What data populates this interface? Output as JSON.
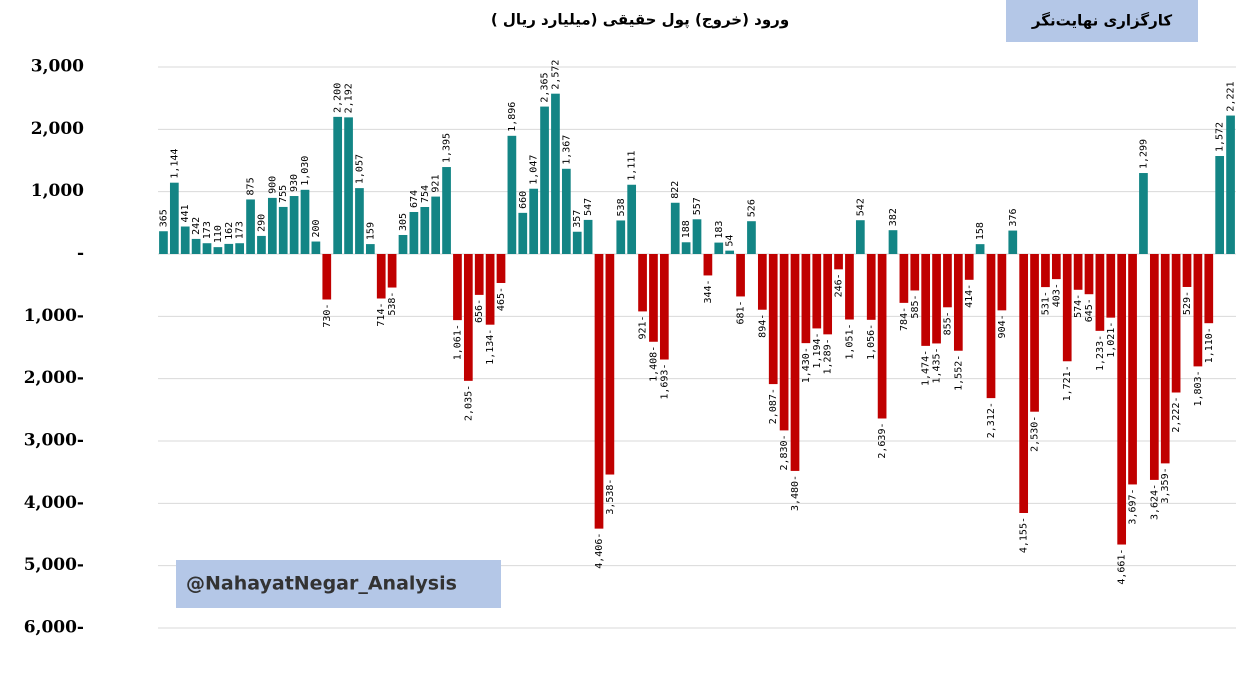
{
  "chart_data": {
    "type": "bar",
    "title": "ورود (خروج) پول حقیقی (میلیارد ریال )",
    "annotations": [
      "کارگزاری نهایت‌نگر",
      "@NahayatNegar_Analysis"
    ],
    "categories": [
      null,
      null,
      null,
      null,
      null,
      null,
      null,
      null,
      null,
      null,
      null,
      null,
      null,
      null,
      null,
      null,
      null,
      null,
      null,
      null,
      null,
      null,
      null,
      null,
      null,
      null,
      null,
      null,
      null,
      null,
      null,
      null,
      null,
      null,
      null,
      null,
      null,
      null,
      null,
      null,
      null,
      null,
      null,
      null,
      null,
      null,
      null,
      null,
      null,
      null,
      null,
      null,
      null,
      null,
      null,
      null,
      null,
      null,
      null,
      null,
      null,
      null,
      null,
      null,
      null,
      null,
      null,
      null,
      null,
      null,
      null,
      null,
      null,
      null,
      null,
      null,
      null,
      null,
      null,
      null,
      null,
      null,
      null,
      null,
      null,
      null,
      null,
      null,
      null,
      null,
      null,
      null,
      null,
      null,
      null,
      null,
      null,
      null,
      null
    ],
    "values": [
      365,
      1144,
      441,
      242,
      173,
      110,
      162,
      173,
      875,
      290,
      900,
      755,
      930,
      1030,
      200,
      -730,
      2200,
      2192,
      1057,
      159,
      -714,
      -538,
      305,
      674,
      754,
      921,
      1395,
      -1061,
      -2035,
      -656,
      -1134,
      -465,
      1896,
      660,
      1047,
      2365,
      2572,
      1367,
      357,
      547,
      -4406,
      -3538,
      538,
      1111,
      -921,
      -1408,
      -1693,
      822,
      188,
      557,
      -344,
      183,
      54,
      -681,
      526,
      -894,
      -2087,
      -2830,
      -3480,
      -1430,
      -1194,
      -1289,
      -246,
      -1051,
      542,
      -1056,
      -2639,
      382,
      -784,
      -585,
      -1474,
      -1435,
      -855,
      -1552,
      -414,
      158,
      -2312,
      -904,
      376,
      -4155,
      -2530,
      -531,
      -403,
      -1721,
      -574,
      -645,
      -1233,
      -1021,
      -4661,
      -3697,
      1299,
      -3624,
      -3359,
      -2222,
      -529,
      -1803,
      -1110,
      1572,
      2221
    ],
    "value_labels": [
      "365",
      "1,144",
      "441",
      "242",
      "173",
      "110",
      "162",
      "173",
      "875",
      "290",
      "900",
      "755",
      "930",
      "1,030",
      "200",
      "730-",
      "2,200",
      "2,192",
      "1,057",
      "159",
      "714-",
      "538-",
      "305",
      "674",
      "754",
      "921",
      "1,395",
      "1,061-",
      "2,035-",
      "656-",
      "1,134-",
      "465-",
      "1,896",
      "660",
      "1,047",
      "2,365",
      "2,572",
      "1,367",
      "357",
      "547",
      "4,406-",
      "3,538-",
      "538",
      "1,111",
      "921-",
      "1,408-",
      "1,693-",
      "822",
      "188",
      "557",
      "344-",
      "183",
      "54",
      "681-",
      "526",
      "894-",
      "2,087-",
      "2,830-",
      "3,480-",
      "1,430-",
      "1,194-",
      "1,289-",
      "246-",
      "1,051-",
      "542",
      "1,056-",
      "2,639-",
      "382",
      "784-",
      "585-",
      "1,474-",
      "1,435-",
      "855-",
      "1,552-",
      "414-",
      "158",
      "2,312-",
      "904-",
      "376",
      "4,155-",
      "2,530-",
      "531-",
      "403-",
      "1,721-",
      "574-",
      "645-",
      "1,233-",
      "1,021-",
      "4,661-",
      "3,697-",
      "1,299",
      "3,624-",
      "3,359-",
      "2,222-",
      "529-",
      "1,803-",
      "1,110-",
      "1,572",
      "2,221"
    ],
    "positive_color": "#138585",
    "negative_color": "#c00000",
    "ylim": [
      -6000,
      3000
    ],
    "yticks": [
      {
        "value": 3000,
        "label": "3,000"
      },
      {
        "value": 2000,
        "label": "2,000"
      },
      {
        "value": 1000,
        "label": "1,000"
      },
      {
        "value": 0,
        "label": "-"
      },
      {
        "value": -1000,
        "label": "1,000-"
      },
      {
        "value": -2000,
        "label": "2,000-"
      },
      {
        "value": -3000,
        "label": "3,000-"
      },
      {
        "value": -4000,
        "label": "4,000-"
      },
      {
        "value": -5000,
        "label": "5,000-"
      },
      {
        "value": -6000,
        "label": "6,000-"
      }
    ],
    "grid": true
  }
}
